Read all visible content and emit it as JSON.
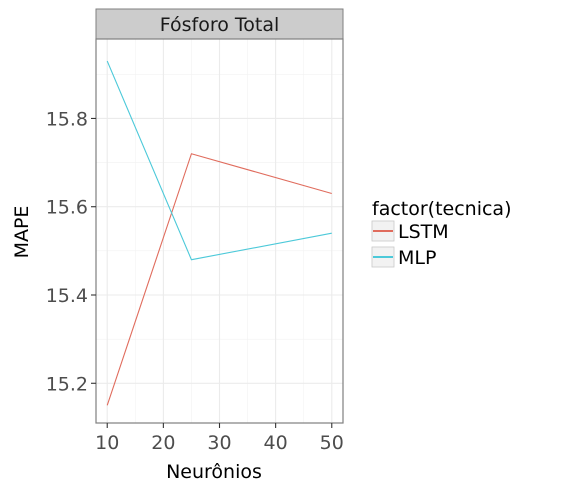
{
  "chart_data": {
    "type": "line",
    "facet_title": "Fósforo Total",
    "xlabel": "Neurônios",
    "ylabel": "MAPE",
    "x": [
      10,
      25,
      50
    ],
    "xlim": [
      8,
      52
    ],
    "ylim": [
      15.11,
      15.98
    ],
    "xticks": [
      "10",
      "20",
      "30",
      "40",
      "50"
    ],
    "yticks": [
      "15.2",
      "15.4",
      "15.6",
      "15.8"
    ],
    "grid": true,
    "legend": {
      "title": "factor(tecnica)",
      "placement": "right",
      "items": [
        "LSTM",
        "MLP"
      ]
    },
    "series": [
      {
        "name": "LSTM",
        "color": "#e06c5d",
        "values": [
          15.15,
          15.72,
          15.63
        ]
      },
      {
        "name": "MLP",
        "color": "#4cc9d9",
        "values": [
          15.93,
          15.48,
          15.54
        ]
      }
    ]
  }
}
